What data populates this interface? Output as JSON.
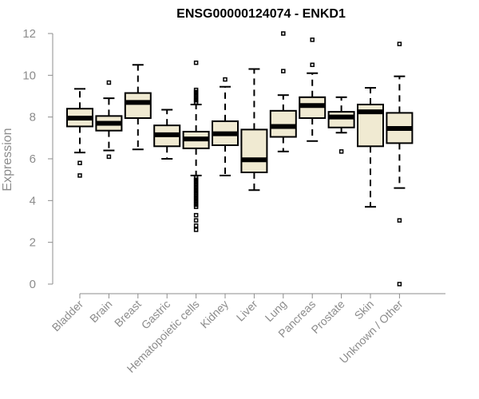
{
  "chart_data": {
    "type": "boxplot",
    "title": "ENSG00000124074 - ENKD1",
    "ylabel": "Expression",
    "xlabel": "",
    "ylim": [
      0,
      12
    ],
    "yticks": [
      0,
      2,
      4,
      6,
      8,
      10,
      12
    ],
    "grid": false,
    "colors": {
      "box_fill": "#f0ead2",
      "stroke": "#000000",
      "axis": "#8c8c8c"
    },
    "categories": [
      "Bladder",
      "Brain",
      "Breast",
      "Gastric",
      "Hematopoietic cells",
      "Kidney",
      "Liver",
      "Lung",
      "Pancreas",
      "Prostate",
      "Skin",
      "Unknown / Other"
    ],
    "boxes": [
      {
        "category": "Bladder",
        "whisker_low": 6.3,
        "q1": 7.55,
        "median": 7.95,
        "q3": 8.4,
        "whisker_high": 9.35,
        "outliers": [
          5.8,
          5.2
        ]
      },
      {
        "category": "Brain",
        "whisker_low": 6.4,
        "q1": 7.35,
        "median": 7.7,
        "q3": 8.05,
        "whisker_high": 8.9,
        "outliers": [
          9.65,
          6.1
        ]
      },
      {
        "category": "Breast",
        "whisker_low": 6.45,
        "q1": 7.95,
        "median": 8.7,
        "q3": 9.15,
        "whisker_high": 10.5,
        "outliers": []
      },
      {
        "category": "Gastric",
        "whisker_low": 6.0,
        "q1": 6.6,
        "median": 7.15,
        "q3": 7.6,
        "whisker_high": 8.35,
        "outliers": []
      },
      {
        "category": "Hematopoietic cells",
        "whisker_low": 5.2,
        "q1": 6.5,
        "median": 6.95,
        "q3": 7.3,
        "whisker_high": 8.6,
        "outliers": [
          10.6,
          9.3,
          9.2,
          9.1,
          9.0,
          8.9,
          8.8,
          8.7,
          5.1,
          5.0,
          4.9,
          4.8,
          4.7,
          4.6,
          4.5,
          4.4,
          4.3,
          4.2,
          4.1,
          4.0,
          3.9,
          3.8,
          3.7,
          3.3,
          3.05,
          2.8,
          2.6
        ]
      },
      {
        "category": "Kidney",
        "whisker_low": 5.2,
        "q1": 6.65,
        "median": 7.2,
        "q3": 7.8,
        "whisker_high": 9.45,
        "outliers": [
          9.8
        ]
      },
      {
        "category": "Liver",
        "whisker_low": 4.5,
        "q1": 5.35,
        "median": 5.95,
        "q3": 7.4,
        "whisker_high": 10.3,
        "outliers": []
      },
      {
        "category": "Lung",
        "whisker_low": 6.35,
        "q1": 7.05,
        "median": 7.55,
        "q3": 8.3,
        "whisker_high": 9.05,
        "outliers": [
          12.0,
          10.2
        ]
      },
      {
        "category": "Pancreas",
        "whisker_low": 6.85,
        "q1": 7.95,
        "median": 8.55,
        "q3": 8.95,
        "whisker_high": 10.1,
        "outliers": [
          11.7,
          10.5
        ]
      },
      {
        "category": "Prostate",
        "whisker_low": 7.25,
        "q1": 7.5,
        "median": 8.0,
        "q3": 8.25,
        "whisker_high": 8.95,
        "outliers": [
          6.35
        ]
      },
      {
        "category": "Skin",
        "whisker_low": 3.7,
        "q1": 6.6,
        "median": 8.25,
        "q3": 8.6,
        "whisker_high": 9.4,
        "outliers": []
      },
      {
        "category": "Unknown / Other",
        "whisker_low": 4.6,
        "q1": 6.75,
        "median": 7.45,
        "q3": 8.2,
        "whisker_high": 9.95,
        "outliers": [
          11.5,
          3.05,
          0.0
        ]
      }
    ]
  }
}
